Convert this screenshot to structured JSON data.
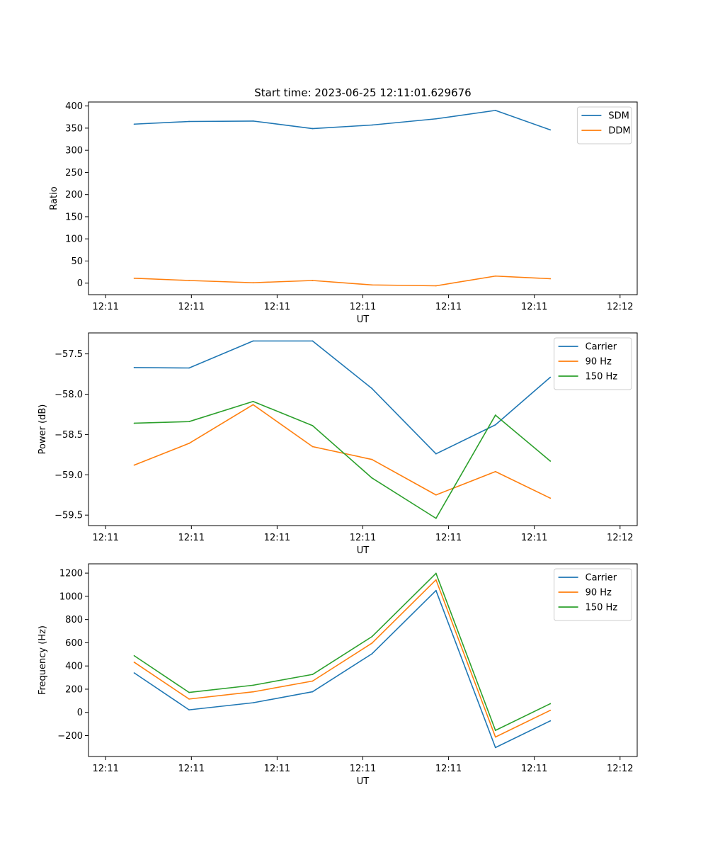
{
  "figure_title": "Start time: 2023-06-25 12:11:01.629676",
  "chart_data": [
    {
      "type": "line",
      "xlabel": "UT",
      "ylabel": "Ratio",
      "x_tick_labels": [
        "12:11",
        "12:11",
        "12:11",
        "12:11",
        "12:11",
        "12:11",
        "12:12"
      ],
      "xlim": [
        0,
        6
      ],
      "x": [
        0.5,
        1.1,
        1.8,
        2.45,
        3.1,
        3.8,
        4.45,
        5.05
      ],
      "y_ticks": [
        0,
        50,
        100,
        150,
        200,
        250,
        300,
        350,
        400
      ],
      "ylim": [
        -26,
        409
      ],
      "legend_position": "upper right",
      "series": [
        {
          "name": "SDM",
          "color": "#1f77b4",
          "values": [
            359,
            365,
            366,
            349,
            357,
            371,
            390,
            346
          ]
        },
        {
          "name": "DDM",
          "color": "#ff7f0e",
          "values": [
            11,
            6,
            1,
            6,
            -4,
            -6,
            16,
            10
          ]
        }
      ]
    },
    {
      "type": "line",
      "xlabel": "UT",
      "ylabel": "Power (dB)",
      "x_tick_labels": [
        "12:11",
        "12:11",
        "12:11",
        "12:11",
        "12:11",
        "12:11",
        "12:12"
      ],
      "xlim": [
        0,
        6
      ],
      "x": [
        0.5,
        1.1,
        1.8,
        2.45,
        3.1,
        3.8,
        4.45,
        5.05
      ],
      "y_ticks": [
        -59.5,
        -59.0,
        -58.5,
        -58.0,
        -57.5
      ],
      "y_tick_labels": [
        "−59.5",
        "−59.0",
        "−58.5",
        "−58.0",
        "−57.5"
      ],
      "ylim": [
        -59.63,
        -57.24
      ],
      "legend_position": "upper right",
      "series": [
        {
          "name": "Carrier",
          "color": "#1f77b4",
          "values": [
            -57.67,
            -57.675,
            -57.34,
            -57.34,
            -57.93,
            -58.74,
            -58.38,
            -57.79
          ]
        },
        {
          "name": "90 Hz",
          "color": "#ff7f0e",
          "values": [
            -58.88,
            -58.61,
            -58.13,
            -58.65,
            -58.81,
            -59.25,
            -58.96,
            -59.29
          ]
        },
        {
          "name": "150 Hz",
          "color": "#2ca02c",
          "values": [
            -58.36,
            -58.34,
            -58.09,
            -58.39,
            -59.04,
            -59.54,
            -58.26,
            -58.83
          ]
        }
      ]
    },
    {
      "type": "line",
      "xlabel": "UT",
      "ylabel": "Frequency (Hz)",
      "x_tick_labels": [
        "12:11",
        "12:11",
        "12:11",
        "12:11",
        "12:11",
        "12:11",
        "12:12"
      ],
      "xlim": [
        0,
        6
      ],
      "x": [
        0.5,
        1.1,
        1.8,
        2.45,
        3.1,
        3.8,
        4.45,
        5.05
      ],
      "y_ticks": [
        -200,
        0,
        200,
        400,
        600,
        800,
        1000,
        1200
      ],
      "y_tick_labels": [
        "−200",
        "0",
        "200",
        "400",
        "600",
        "800",
        "1000",
        "1200"
      ],
      "ylim": [
        -380,
        1280
      ],
      "legend_position": "upper right",
      "series": [
        {
          "name": "Carrier",
          "color": "#1f77b4",
          "values": [
            340,
            22,
            83,
            178,
            505,
            1050,
            -303,
            -73
          ]
        },
        {
          "name": "90 Hz",
          "color": "#ff7f0e",
          "values": [
            432,
            115,
            177,
            270,
            597,
            1142,
            -212,
            18
          ]
        },
        {
          "name": "150 Hz",
          "color": "#2ca02c",
          "values": [
            488,
            172,
            234,
            327,
            653,
            1198,
            -155,
            75
          ]
        }
      ]
    }
  ]
}
